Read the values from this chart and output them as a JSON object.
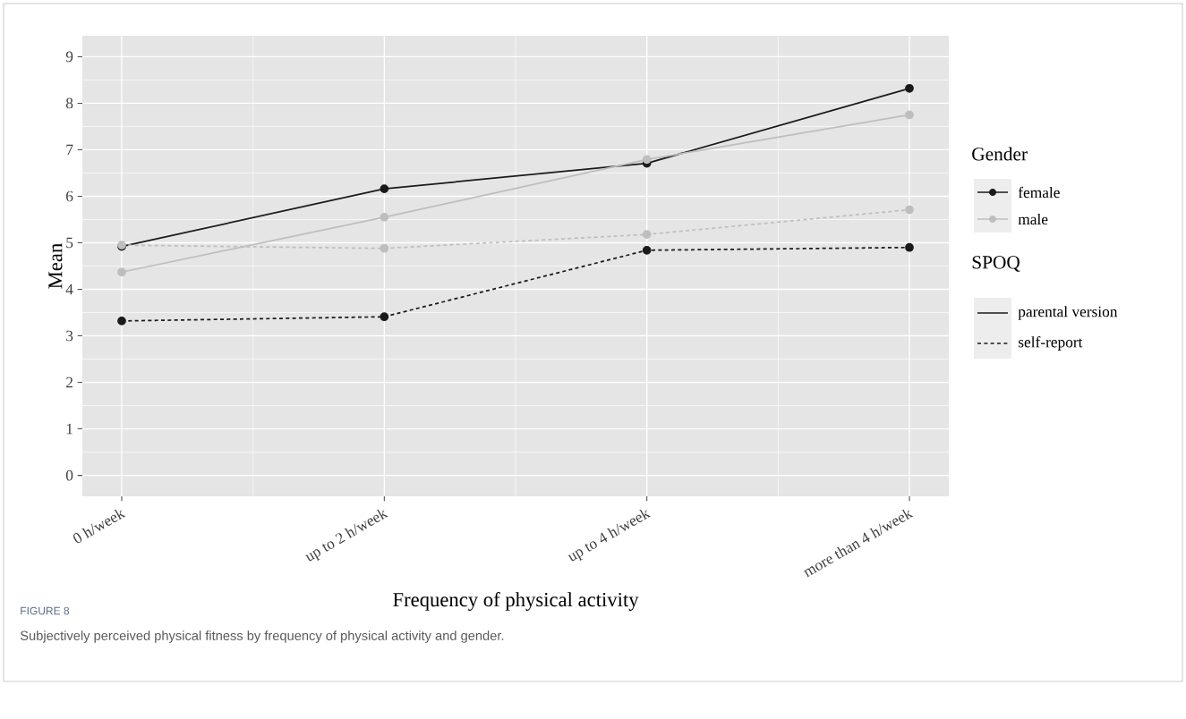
{
  "chart_data": {
    "type": "line",
    "xlabel": "Frequency of physical activity",
    "ylabel": "Mean",
    "legend_title": "Gender",
    "categories": [
      "0 h/week",
      "up to 2 h/week",
      "up to 4 h/week",
      "more than 4 h/week"
    ],
    "series": [
      {
        "name": "female",
        "color": "#1a1a1a",
        "line_style": "solid",
        "values": [
          4.92,
          6.16,
          6.71,
          8.32
        ]
      },
      {
        "name": "male",
        "color": "#bebebe",
        "line_style": "solid",
        "values": [
          4.37,
          5.55,
          6.79,
          7.75
        ]
      },
      {
        "color": "#1a1a1a",
        "line_style": "dashed",
        "values": [
          3.32,
          3.41,
          4.84,
          4.9
        ]
      },
      {
        "color": "#bebebe",
        "line_style": "dashed",
        "values": [
          4.95,
          4.88,
          5.18,
          5.71
        ]
      }
    ],
    "ylim": [
      -0.45,
      9.45
    ],
    "yticks": [
      0,
      1,
      2,
      3,
      4,
      5,
      6,
      7,
      8,
      9
    ],
    "grid": true,
    "marker": "circle",
    "legend": "right",
    "annotations": [
      "SPOQ",
      "parental version",
      "self-report",
      "FIGURE 8",
      "Subjectively perceived physical fitness by frequency of physical activity and gender."
    ]
  }
}
